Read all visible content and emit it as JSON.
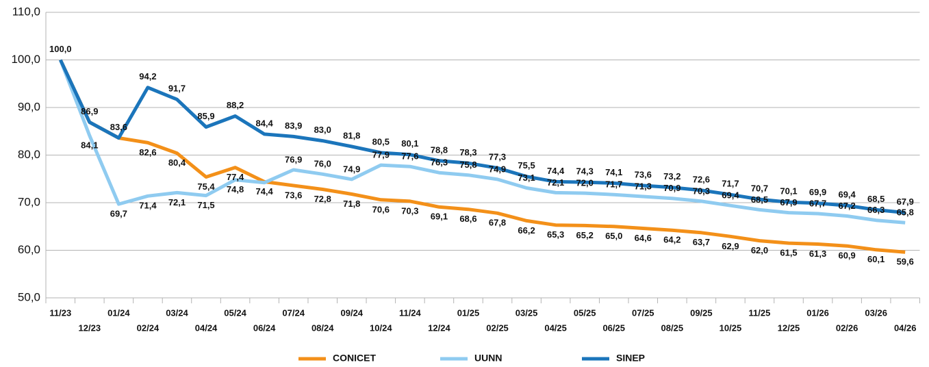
{
  "chart_data": {
    "type": "line",
    "categories": [
      "11/23",
      "12/23",
      "01/24",
      "02/24",
      "03/24",
      "04/24",
      "05/24",
      "06/24",
      "07/24",
      "08/24",
      "09/24",
      "10/24",
      "11/24",
      "12/24",
      "01/25",
      "02/25",
      "03/25",
      "04/25",
      "05/25",
      "06/25",
      "07/25",
      "08/25",
      "09/25",
      "10/25",
      "11/25",
      "12/25",
      "01/26",
      "02/26",
      "03/26",
      "04/26"
    ],
    "series": [
      {
        "name": "CONICET",
        "color": "#f39019",
        "values": [
          100.0,
          86.9,
          83.6,
          82.6,
          80.4,
          75.4,
          77.4,
          74.4,
          73.6,
          72.8,
          71.8,
          70.6,
          70.3,
          69.1,
          68.6,
          67.8,
          66.2,
          65.3,
          65.2,
          65.0,
          64.6,
          64.2,
          63.7,
          62.9,
          62.0,
          61.5,
          61.3,
          60.9,
          60.1,
          59.6
        ],
        "value_labels": [
          null,
          null,
          null,
          "82,6",
          "80,4",
          "75,4",
          "77,4",
          "74,4",
          "73,6",
          "72,8",
          "71,8",
          "70,6",
          "70,3",
          "69,1",
          "68,6",
          "67,8",
          "66,2",
          "65,3",
          "65,2",
          "65,0",
          "64,6",
          "64,2",
          "63,7",
          "62,9",
          "62,0",
          "61,5",
          "61,3",
          "60,9",
          "60,1",
          "59,6"
        ]
      },
      {
        "name": "UUNN",
        "color": "#8fcbf0",
        "values": [
          100.0,
          84.1,
          69.7,
          71.4,
          72.1,
          71.5,
          74.8,
          74.2,
          76.9,
          76.0,
          74.9,
          77.9,
          77.6,
          76.3,
          75.8,
          74.9,
          73.1,
          72.1,
          72.0,
          71.7,
          71.3,
          70.9,
          70.3,
          69.4,
          68.5,
          67.9,
          67.7,
          67.2,
          66.3,
          65.8
        ],
        "value_labels": [
          null,
          "84,1",
          "69,7",
          "71,4",
          "72,1",
          "71,5",
          "74,8",
          null,
          "76,9",
          "76,0",
          "74,9",
          "77,9",
          "77,6",
          "76,3",
          "75,8",
          "74,9",
          "73,1",
          "72,1",
          "72,0",
          "71,7",
          "71,3",
          "70,9",
          "70,3",
          "69,4",
          "68,5",
          "67,9",
          "67,7",
          "67,2",
          "66,3",
          "65,8"
        ]
      },
      {
        "name": "SINEP",
        "color": "#1b75bb",
        "values": [
          100.0,
          86.9,
          83.6,
          94.2,
          91.7,
          85.9,
          88.2,
          84.4,
          83.9,
          83.0,
          81.8,
          80.5,
          80.1,
          78.8,
          78.3,
          77.3,
          75.5,
          74.4,
          74.3,
          74.1,
          73.6,
          73.2,
          72.6,
          71.7,
          70.7,
          70.1,
          69.9,
          69.4,
          68.5,
          67.9
        ],
        "value_labels": [
          "100,0",
          "86,9",
          "83,6",
          "94,2",
          "91,7",
          "85,9",
          "88,2",
          "84,4",
          "83,9",
          "83,0",
          "81,8",
          "80,5",
          "80,1",
          "78,8",
          "78,3",
          "77,3",
          "75,5",
          "74,4",
          "74,3",
          "74,1",
          "73,6",
          "73,2",
          "72,6",
          "71,7",
          "70,7",
          "70,1",
          "69,9",
          "69,4",
          "68,5",
          "67,9"
        ]
      }
    ],
    "ylim": [
      50,
      110
    ],
    "yticks": [
      {
        "value": 50,
        "label": "50,0"
      },
      {
        "value": 60,
        "label": "60,0"
      },
      {
        "value": 70,
        "label": "70,0"
      },
      {
        "value": 80,
        "label": "80,0"
      },
      {
        "value": 90,
        "label": "90,0"
      },
      {
        "value": 100,
        "label": "100,0"
      },
      {
        "value": 110,
        "label": "110,0"
      }
    ],
    "grid": true,
    "legend": "bottom"
  }
}
